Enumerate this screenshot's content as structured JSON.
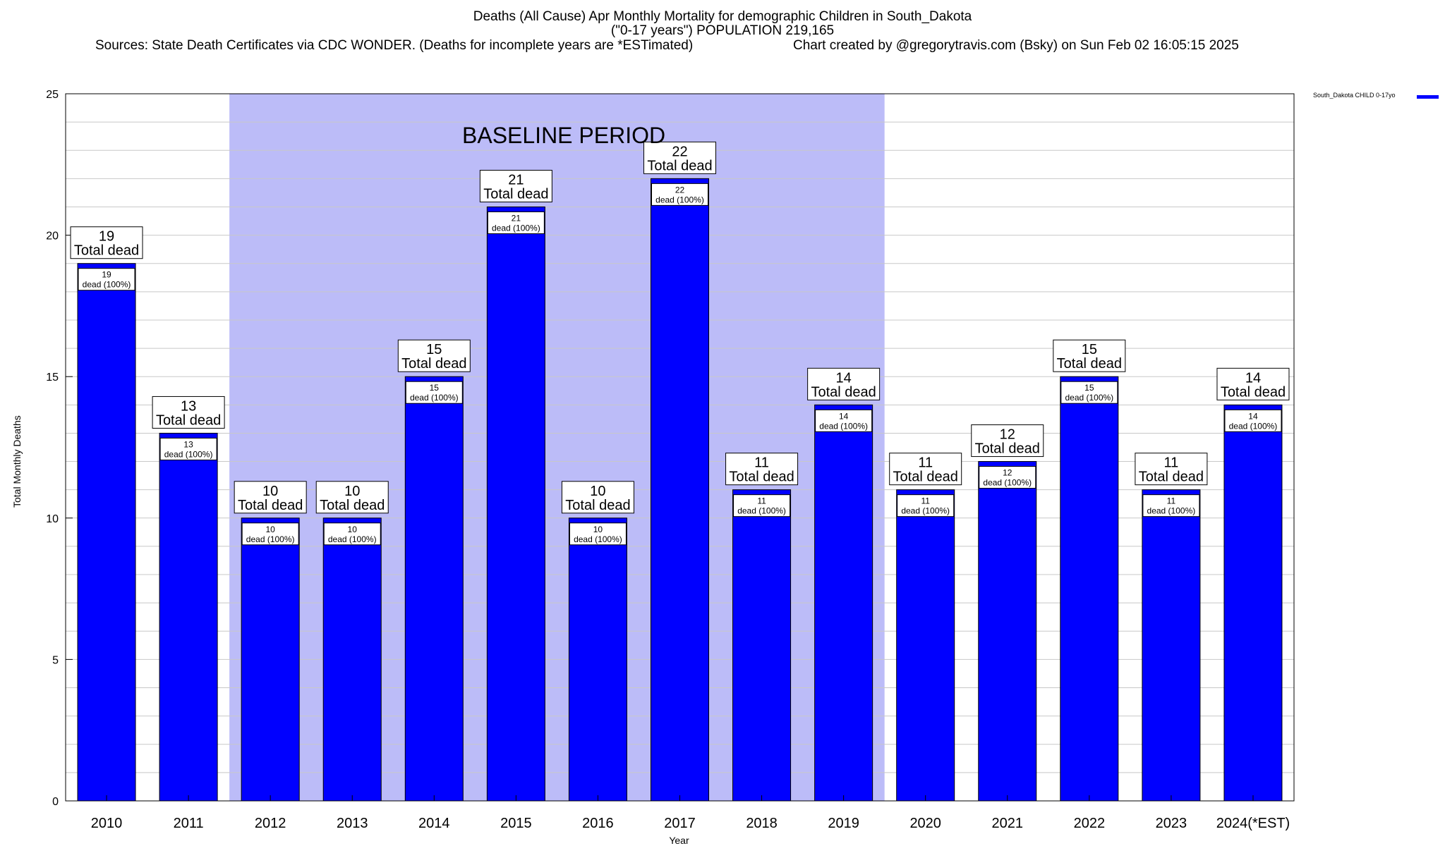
{
  "title_lines": [
    "Deaths (All Cause) Apr Monthly Mortality for demographic Children in South_Dakota",
    "(\"0-17 years\") POPULATION 219,165",
    "Sources: State Death Certificates via CDC WONDER. (Deaths for incomplete years are *ESTimated)",
    "Chart created by @gregorytravis.com (Bsky) on Sun Feb 02 16:05:15 2025"
  ],
  "baseline_label": "BASELINE PERIOD",
  "legend_label": "South_Dakota CHILD 0-17yo",
  "colors": {
    "bar": "#0000ff",
    "baseline_band": "#bcbcf8",
    "grid": "#c8c8c8"
  },
  "chart_data": {
    "type": "bar",
    "categories": [
      "2010",
      "2011",
      "2012",
      "2013",
      "2014",
      "2015",
      "2016",
      "2017",
      "2018",
      "2019",
      "2020",
      "2021",
      "2022",
      "2023",
      "2024(*EST)"
    ],
    "series": [
      {
        "name": "South_Dakota CHILD 0-17yo",
        "values": [
          19,
          13,
          10,
          10,
          15,
          21,
          10,
          22,
          11,
          14,
          11,
          12,
          15,
          11,
          14
        ]
      }
    ],
    "xlabel": "Year",
    "ylabel": "Total Monthly Deaths",
    "ylim": [
      0,
      25
    ],
    "yticks": [
      0,
      5,
      10,
      15,
      20,
      25
    ],
    "grid": true,
    "legend_position": "top-right",
    "baseline_period": [
      "2012",
      "2019"
    ],
    "total_label_suffix": "Total dead",
    "inner_label_suffix": "dead (100%)"
  }
}
